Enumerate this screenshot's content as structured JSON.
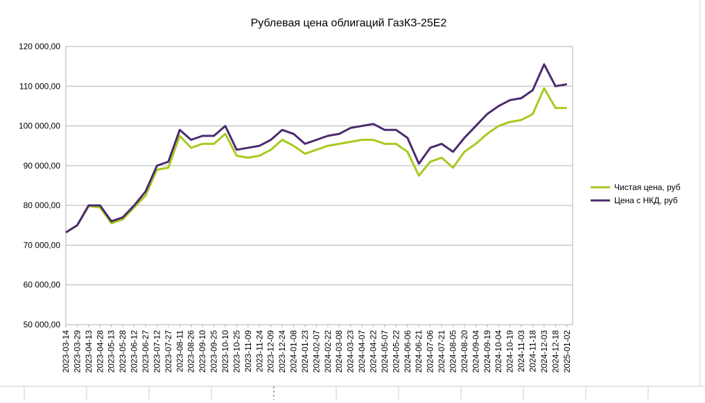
{
  "chart_data": {
    "type": "line",
    "title": "Рублевая цена облигаций ГазКЗ-25Е2",
    "categories": [
      "2023-03-14",
      "2023-03-29",
      "2023-04-13",
      "2023-04-28",
      "2023-05-13",
      "2023-05-28",
      "2023-06-12",
      "2023-06-27",
      "2023-07-12",
      "2023-07-27",
      "2023-08-11",
      "2023-08-26",
      "2023-09-10",
      "2023-09-25",
      "2023-10-10",
      "2023-10-25",
      "2023-11-09",
      "2023-11-24",
      "2023-12-09",
      "2023-12-24",
      "2024-01-08",
      "2024-01-23",
      "2024-02-07",
      "2024-02-22",
      "2024-03-08",
      "2024-03-23",
      "2024-04-07",
      "2024-04-22",
      "2024-05-07",
      "2024-05-22",
      "2024-06-06",
      "2024-06-21",
      "2024-07-06",
      "2024-07-21",
      "2024-08-05",
      "2024-08-20",
      "2024-09-04",
      "2024-09-19",
      "2024-10-04",
      "2024-10-19",
      "2024-11-03",
      "2024-11-18",
      "2024-12-03",
      "2024-12-18",
      "2025-01-02"
    ],
    "series": [
      {
        "name": "Чистая цена, руб",
        "color": "#a6ca1e",
        "values": [
          73200,
          75000,
          79800,
          79500,
          75500,
          76500,
          79500,
          82500,
          89000,
          89500,
          97500,
          94500,
          95500,
          95500,
          98000,
          92500,
          92000,
          92500,
          94000,
          96500,
          95000,
          93000,
          94000,
          95000,
          95500,
          96000,
          96500,
          96500,
          95500,
          95500,
          93500,
          87500,
          91000,
          92000,
          89500,
          93500,
          95500,
          98000,
          100000,
          101000,
          101500,
          103000,
          109500,
          104500,
          104500
        ]
      },
      {
        "name": "Цена с НКД, руб",
        "color": "#4b2a6e",
        "values": [
          73200,
          75000,
          80000,
          80000,
          76000,
          77000,
          80000,
          83500,
          90000,
          91000,
          99000,
          96500,
          97500,
          97500,
          100000,
          94000,
          94500,
          95000,
          96500,
          99000,
          98000,
          95500,
          96500,
          97500,
          98000,
          99500,
          100000,
          100500,
          99000,
          99000,
          97000,
          90500,
          94500,
          95500,
          93500,
          97000,
          100000,
          103000,
          105000,
          106500,
          107000,
          109000,
          115500,
          110000,
          110500
        ]
      }
    ],
    "ylim": [
      50000,
      120000
    ],
    "yticks": [
      {
        "value": 50000,
        "label": "50 000,00"
      },
      {
        "value": 60000,
        "label": "60 000,00"
      },
      {
        "value": 70000,
        "label": "70 000,00"
      },
      {
        "value": 80000,
        "label": "80 000,00"
      },
      {
        "value": 90000,
        "label": "90 000,00"
      },
      {
        "value": 100000,
        "label": "100 000,00"
      },
      {
        "value": 110000,
        "label": "110 000,00"
      },
      {
        "value": 120000,
        "label": "120 000,00"
      }
    ],
    "grid": true,
    "legend": "right"
  }
}
